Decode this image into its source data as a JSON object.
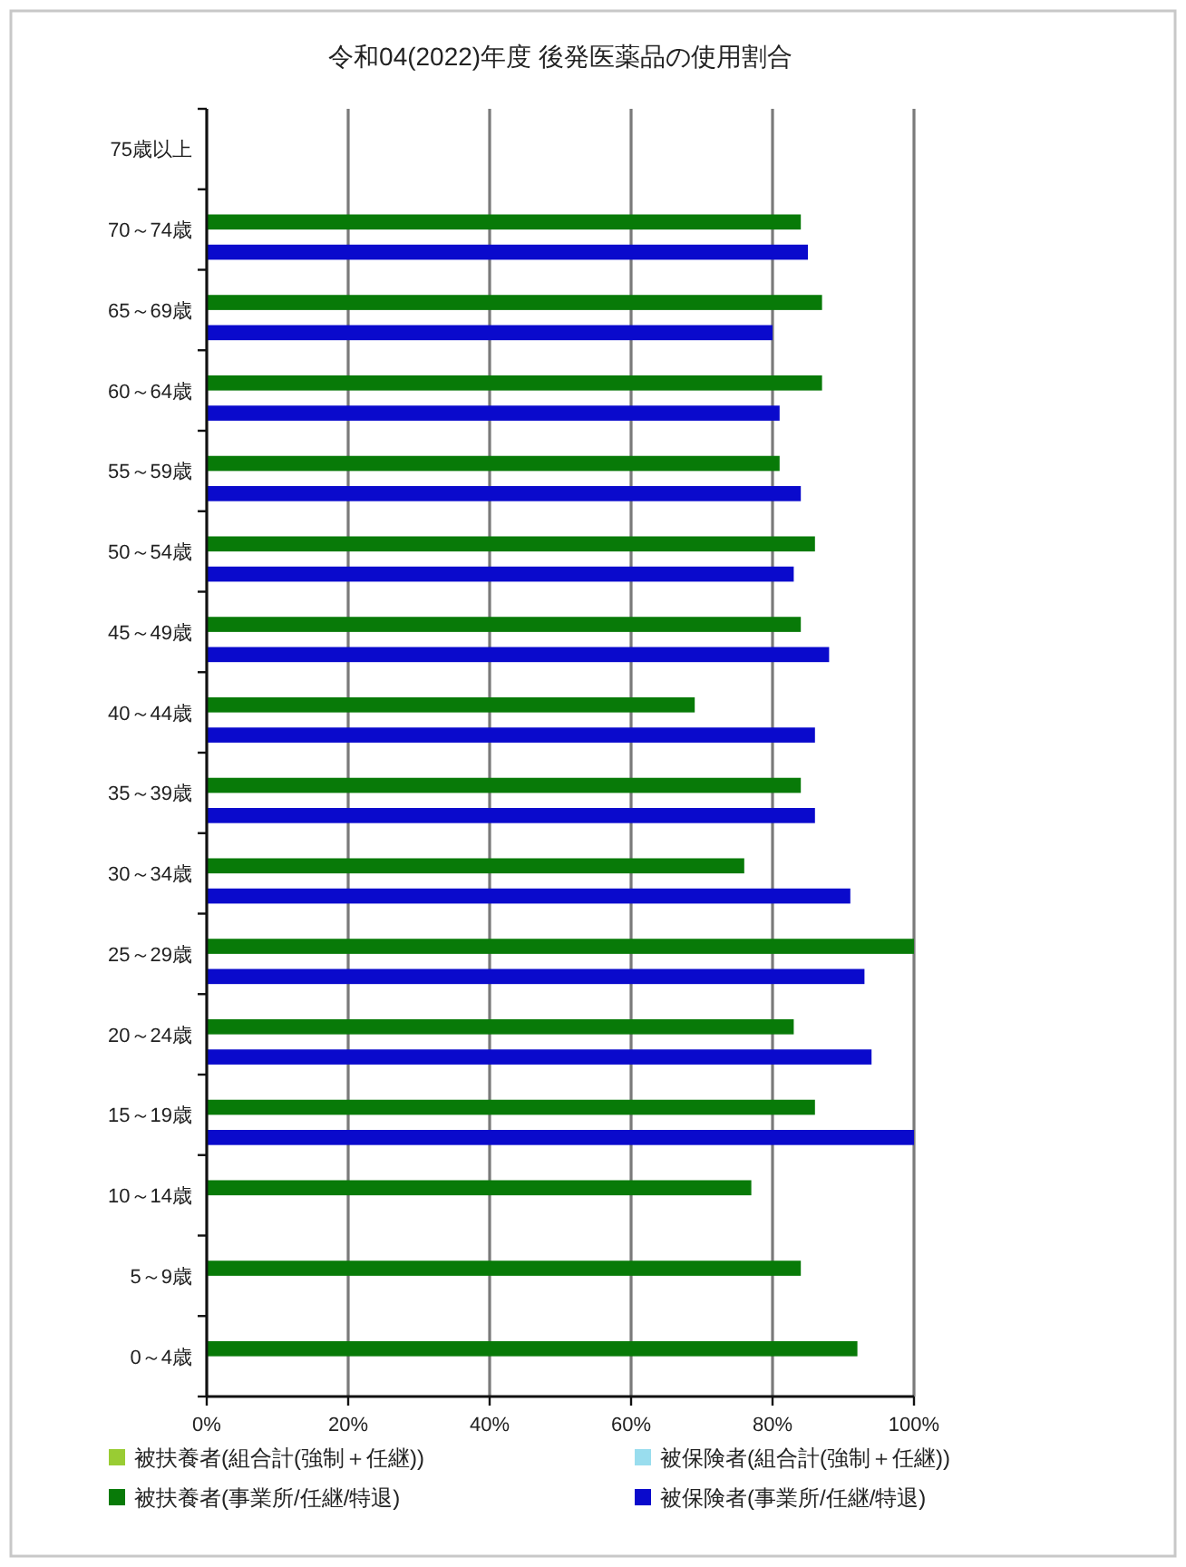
{
  "chart_data": {
    "type": "bar",
    "orientation": "horizontal",
    "title": "令和04(2022)年度 後発医薬品の使用割合",
    "categories": [
      "75歳以上",
      "70～74歳",
      "65～69歳",
      "60～64歳",
      "55～59歳",
      "50～54歳",
      "45～49歳",
      "40～44歳",
      "35～39歳",
      "30～34歳",
      "25～29歳",
      "20～24歳",
      "15～19歳",
      "10～14歳",
      "5～9歳",
      "0～4歳"
    ],
    "series": [
      {
        "name": "被扶養者(組合計(強制＋任継))",
        "color": "#99cc33",
        "values": [
          null,
          null,
          null,
          null,
          null,
          null,
          null,
          null,
          null,
          null,
          null,
          null,
          null,
          null,
          null,
          null
        ]
      },
      {
        "name": "被扶養者(事業所/任継/特退)",
        "color": "#087a08",
        "values": [
          null,
          84,
          87,
          87,
          81,
          86,
          84,
          69,
          84,
          76,
          100,
          83,
          86,
          77,
          84,
          92
        ]
      },
      {
        "name": "被保険者(組合計(強制＋任継))",
        "color": "#99ddee",
        "values": [
          null,
          null,
          null,
          null,
          null,
          null,
          null,
          null,
          null,
          null,
          null,
          null,
          null,
          null,
          null,
          null
        ]
      },
      {
        "name": "被保険者(事業所/任継/特退)",
        "color": "#0a0acc",
        "values": [
          null,
          85,
          80,
          81,
          84,
          83,
          88,
          86,
          86,
          91,
          93,
          94,
          100,
          null,
          null,
          null
        ]
      }
    ],
    "xlim": [
      0,
      100
    ],
    "xticks": [
      {
        "value": 0,
        "label": "0%"
      },
      {
        "value": 20,
        "label": "20%"
      },
      {
        "value": 40,
        "label": "40%"
      },
      {
        "value": 60,
        "label": "60%"
      },
      {
        "value": 80,
        "label": "80%"
      },
      {
        "value": 100,
        "label": "100%"
      }
    ],
    "grid": "x",
    "legend": "bottom"
  }
}
